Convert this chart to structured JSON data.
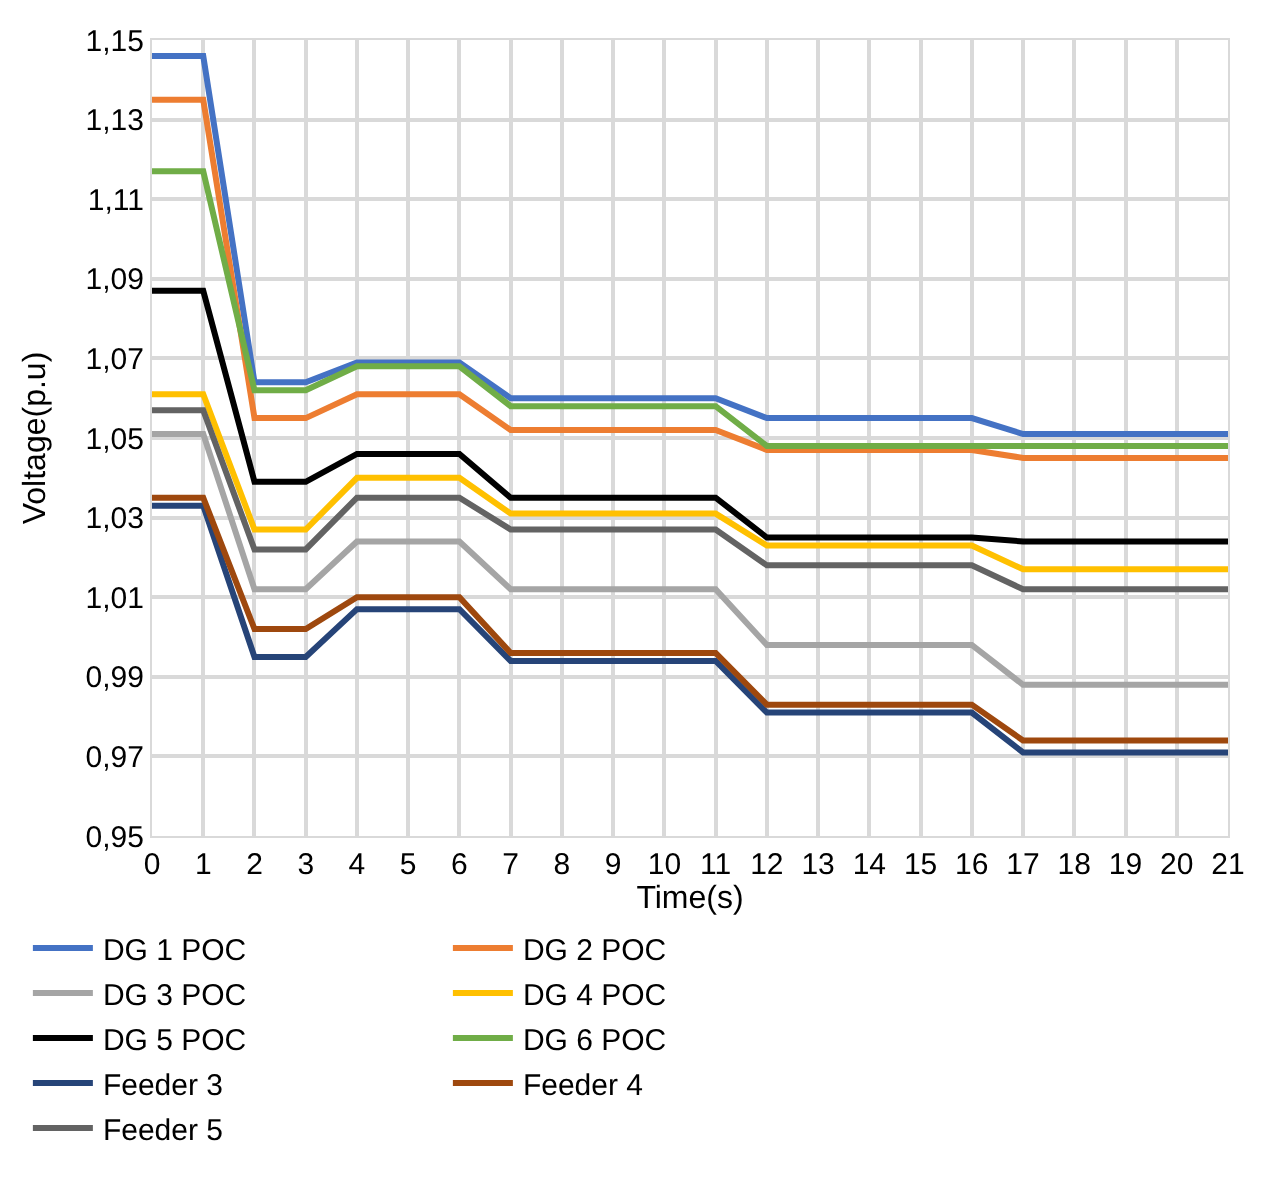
{
  "chart_data": {
    "type": "line",
    "xlabel": "Time(s)",
    "ylabel": "Voltage(p.u)",
    "x": [
      0,
      1,
      2,
      3,
      4,
      5,
      6,
      7,
      8,
      9,
      10,
      11,
      12,
      13,
      14,
      15,
      16,
      17,
      18,
      19,
      20,
      21
    ],
    "xlim": [
      0,
      21
    ],
    "xticks": [
      0,
      1,
      2,
      3,
      4,
      5,
      6,
      7,
      8,
      9,
      10,
      11,
      12,
      13,
      14,
      15,
      16,
      17,
      18,
      19,
      20,
      21
    ],
    "ylim": [
      0.95,
      1.15
    ],
    "yticks": [
      {
        "value": 0.95,
        "label": "0,95"
      },
      {
        "value": 0.97,
        "label": "0,97"
      },
      {
        "value": 0.99,
        "label": "0,99"
      },
      {
        "value": 1.01,
        "label": "1,01"
      },
      {
        "value": 1.03,
        "label": "1,03"
      },
      {
        "value": 1.05,
        "label": "1,05"
      },
      {
        "value": 1.07,
        "label": "1,07"
      },
      {
        "value": 1.09,
        "label": "1,09"
      },
      {
        "value": 1.11,
        "label": "1,11"
      },
      {
        "value": 1.13,
        "label": "1,13"
      },
      {
        "value": 1.15,
        "label": "1,15"
      }
    ],
    "grid": true,
    "legend": "bottom",
    "marker": "none",
    "line_style": "solid",
    "series": [
      {
        "name": "DG 1 POC",
        "color": "#4472c4",
        "values": [
          1.146,
          1.146,
          1.064,
          1.064,
          1.069,
          1.069,
          1.069,
          1.06,
          1.06,
          1.06,
          1.06,
          1.06,
          1.055,
          1.055,
          1.055,
          1.055,
          1.055,
          1.051,
          1.051,
          1.051,
          1.051,
          1.051
        ]
      },
      {
        "name": "DG 2 POC",
        "color": "#ed7d31",
        "values": [
          1.135,
          1.135,
          1.055,
          1.055,
          1.061,
          1.061,
          1.061,
          1.052,
          1.052,
          1.052,
          1.052,
          1.052,
          1.047,
          1.047,
          1.047,
          1.047,
          1.047,
          1.045,
          1.045,
          1.045,
          1.045,
          1.045
        ]
      },
      {
        "name": "DG 3 POC",
        "color": "#a5a5a5",
        "values": [
          1.051,
          1.051,
          1.012,
          1.012,
          1.024,
          1.024,
          1.024,
          1.012,
          1.012,
          1.012,
          1.012,
          1.012,
          0.998,
          0.998,
          0.998,
          0.998,
          0.998,
          0.988,
          0.988,
          0.988,
          0.988,
          0.988
        ]
      },
      {
        "name": "DG 4 POC",
        "color": "#ffc000",
        "values": [
          1.061,
          1.061,
          1.027,
          1.027,
          1.04,
          1.04,
          1.04,
          1.031,
          1.031,
          1.031,
          1.031,
          1.031,
          1.023,
          1.023,
          1.023,
          1.023,
          1.023,
          1.017,
          1.017,
          1.017,
          1.017,
          1.017
        ]
      },
      {
        "name": "DG 5 POC",
        "color": "#000000",
        "values": [
          1.087,
          1.087,
          1.039,
          1.039,
          1.046,
          1.046,
          1.046,
          1.035,
          1.035,
          1.035,
          1.035,
          1.035,
          1.025,
          1.025,
          1.025,
          1.025,
          1.025,
          1.024,
          1.024,
          1.024,
          1.024,
          1.024
        ]
      },
      {
        "name": "DG 6 POC",
        "color": "#70ad47",
        "values": [
          1.117,
          1.117,
          1.062,
          1.062,
          1.068,
          1.068,
          1.068,
          1.058,
          1.058,
          1.058,
          1.058,
          1.058,
          1.048,
          1.048,
          1.048,
          1.048,
          1.048,
          1.048,
          1.048,
          1.048,
          1.048,
          1.048
        ]
      },
      {
        "name": "Feeder 3",
        "color": "#264478",
        "values": [
          1.033,
          1.033,
          0.995,
          0.995,
          1.007,
          1.007,
          1.007,
          0.994,
          0.994,
          0.994,
          0.994,
          0.994,
          0.981,
          0.981,
          0.981,
          0.981,
          0.981,
          0.971,
          0.971,
          0.971,
          0.971,
          0.971
        ]
      },
      {
        "name": "Feeder 4",
        "color": "#9e480e",
        "values": [
          1.035,
          1.035,
          1.002,
          1.002,
          1.01,
          1.01,
          1.01,
          0.996,
          0.996,
          0.996,
          0.996,
          0.996,
          0.983,
          0.983,
          0.983,
          0.983,
          0.983,
          0.974,
          0.974,
          0.974,
          0.974,
          0.974
        ]
      },
      {
        "name": "Feeder 5",
        "color": "#636363",
        "values": [
          1.057,
          1.057,
          1.022,
          1.022,
          1.035,
          1.035,
          1.035,
          1.027,
          1.027,
          1.027,
          1.027,
          1.027,
          1.018,
          1.018,
          1.018,
          1.018,
          1.018,
          1.012,
          1.012,
          1.012,
          1.012,
          1.012
        ]
      }
    ]
  }
}
